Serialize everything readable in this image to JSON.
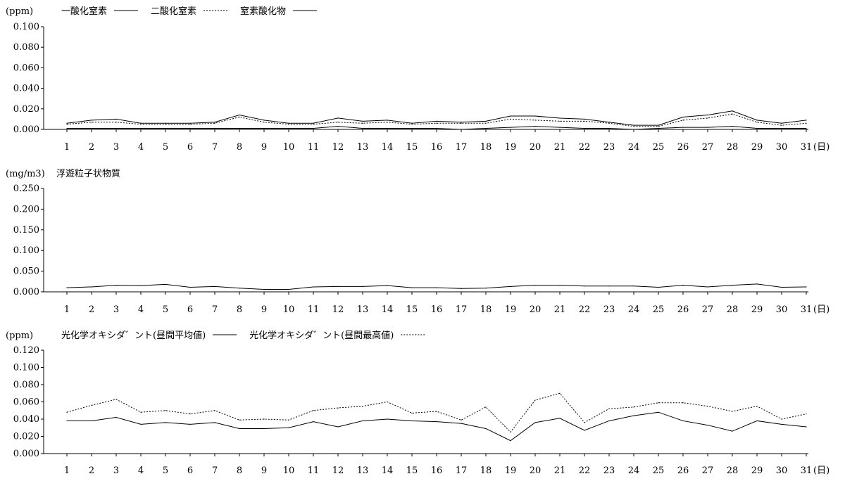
{
  "chart_data": [
    {
      "type": "line",
      "unit_label": "(ppm)",
      "xlabel": "(日)",
      "ylim": [
        0,
        0.1
      ],
      "yticks": [
        "0.000",
        "0.020",
        "0.040",
        "0.060",
        "0.080",
        "0.100"
      ],
      "categories": [
        "1",
        "2",
        "3",
        "4",
        "5",
        "6",
        "7",
        "8",
        "9",
        "10",
        "11",
        "12",
        "13",
        "14",
        "15",
        "16",
        "17",
        "18",
        "19",
        "20",
        "21",
        "22",
        "23",
        "24",
        "25",
        "26",
        "27",
        "28",
        "29",
        "30",
        "31"
      ],
      "series": [
        {
          "name": "一酸化窒素",
          "style": "solid",
          "color": "#000000",
          "values": [
            0.001,
            0.001,
            0.001,
            0.001,
            0.001,
            0.001,
            0.001,
            0.001,
            0.001,
            0.001,
            0.001,
            0.003,
            0.001,
            0.001,
            0.001,
            0.001,
            0.0,
            0.001,
            0.002,
            0.003,
            0.002,
            0.001,
            0.001,
            0.0,
            0.001,
            0.002,
            0.002,
            0.003,
            0.001,
            0.001,
            0.001
          ]
        },
        {
          "name": "二酸化窒素",
          "style": "dotted",
          "color": "#000000",
          "values": [
            0.005,
            0.007,
            0.007,
            0.005,
            0.005,
            0.005,
            0.006,
            0.012,
            0.007,
            0.005,
            0.005,
            0.007,
            0.006,
            0.007,
            0.005,
            0.006,
            0.006,
            0.006,
            0.01,
            0.009,
            0.008,
            0.008,
            0.006,
            0.003,
            0.003,
            0.009,
            0.011,
            0.015,
            0.007,
            0.004,
            0.006
          ]
        },
        {
          "name": "窒素酸化物",
          "style": "solid",
          "color": "#000000",
          "values": [
            0.006,
            0.009,
            0.01,
            0.006,
            0.006,
            0.006,
            0.007,
            0.014,
            0.009,
            0.006,
            0.006,
            0.011,
            0.008,
            0.009,
            0.006,
            0.008,
            0.007,
            0.008,
            0.013,
            0.013,
            0.011,
            0.01,
            0.007,
            0.004,
            0.004,
            0.012,
            0.014,
            0.018,
            0.009,
            0.006,
            0.009
          ]
        }
      ]
    },
    {
      "type": "line",
      "unit_label": "(mg/m3)",
      "xlabel": "(日)",
      "ylim": [
        0,
        0.25
      ],
      "yticks": [
        "0.000",
        "0.050",
        "0.100",
        "0.150",
        "0.200",
        "0.250"
      ],
      "categories": [
        "1",
        "2",
        "3",
        "4",
        "5",
        "6",
        "7",
        "8",
        "9",
        "10",
        "11",
        "12",
        "13",
        "14",
        "15",
        "16",
        "17",
        "18",
        "19",
        "20",
        "21",
        "22",
        "23",
        "24",
        "25",
        "26",
        "27",
        "28",
        "29",
        "30",
        "31"
      ],
      "series": [
        {
          "name": "浮遊粒子状物質",
          "style": "solid",
          "color": "#000000",
          "legend_line": false,
          "values": [
            0.01,
            0.012,
            0.016,
            0.015,
            0.018,
            0.011,
            0.013,
            0.009,
            0.006,
            0.006,
            0.012,
            0.013,
            0.013,
            0.015,
            0.01,
            0.01,
            0.008,
            0.009,
            0.013,
            0.016,
            0.016,
            0.014,
            0.014,
            0.014,
            0.011,
            0.016,
            0.012,
            0.016,
            0.019,
            0.011,
            0.012
          ]
        }
      ]
    },
    {
      "type": "line",
      "unit_label": "(ppm)",
      "xlabel": "(日)",
      "ylim": [
        0,
        0.12
      ],
      "yticks": [
        "0.000",
        "0.020",
        "0.040",
        "0.060",
        "0.080",
        "0.100",
        "0.120"
      ],
      "categories": [
        "1",
        "2",
        "3",
        "4",
        "5",
        "6",
        "7",
        "8",
        "9",
        "10",
        "11",
        "12",
        "13",
        "14",
        "15",
        "16",
        "17",
        "18",
        "19",
        "20",
        "21",
        "22",
        "23",
        "24",
        "25",
        "26",
        "27",
        "28",
        "29",
        "30",
        "31"
      ],
      "series": [
        {
          "name": "光化学オキシダ゛ント(昼間平均値)",
          "style": "solid",
          "color": "#000000",
          "values": [
            0.038,
            0.038,
            0.042,
            0.034,
            0.036,
            0.034,
            0.036,
            0.029,
            0.029,
            0.03,
            0.037,
            0.031,
            0.038,
            0.04,
            0.038,
            0.037,
            0.035,
            0.029,
            0.015,
            0.036,
            0.041,
            0.027,
            0.038,
            0.044,
            0.048,
            0.038,
            0.033,
            0.026,
            0.038,
            0.034,
            0.031
          ]
        },
        {
          "name": "光化学オキシダ゛ント(昼間最高値)",
          "style": "dotted",
          "color": "#000000",
          "values": [
            0.048,
            0.056,
            0.063,
            0.048,
            0.05,
            0.046,
            0.05,
            0.039,
            0.04,
            0.039,
            0.05,
            0.053,
            0.055,
            0.06,
            0.047,
            0.049,
            0.039,
            0.054,
            0.025,
            0.062,
            0.07,
            0.036,
            0.052,
            0.054,
            0.059,
            0.059,
            0.055,
            0.049,
            0.055,
            0.04,
            0.046
          ]
        }
      ]
    }
  ]
}
